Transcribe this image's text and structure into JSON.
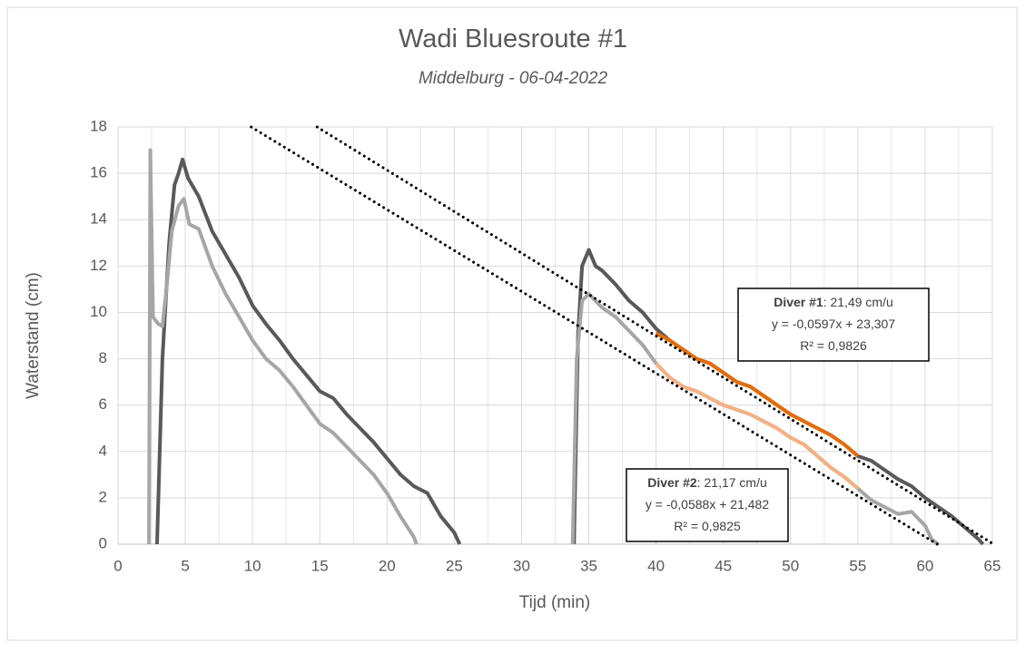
{
  "chart_data": {
    "type": "line",
    "title": "Wadi Bluesroute #1",
    "subtitle": "Middelburg - 06-04-2022",
    "x_label": "Tijd (min)",
    "y_label": "Waterstand (cm)",
    "xlim": [
      0,
      65
    ],
    "ylim": [
      0,
      18
    ],
    "xticks": [
      0,
      5,
      10,
      15,
      20,
      25,
      30,
      35,
      40,
      45,
      50,
      55,
      60,
      65
    ],
    "yticks": [
      0,
      2,
      4,
      6,
      8,
      10,
      12,
      14,
      16,
      18
    ],
    "grid": true,
    "series": [
      {
        "color": "#595959",
        "width": 4,
        "dash": false,
        "x": [
          2.9,
          3.3,
          3.8,
          4.2,
          4.5,
          4.8,
          5.2,
          6,
          7,
          8,
          9,
          10,
          11,
          12,
          13,
          14,
          15,
          16,
          17,
          18,
          19,
          20,
          21,
          22,
          23,
          24,
          25,
          25.4,
          null,
          33.9,
          34.2,
          34.5,
          35,
          35.5,
          36,
          37,
          38,
          39,
          40,
          41,
          42,
          43,
          44,
          45,
          46,
          47,
          48,
          49,
          50,
          51,
          52,
          53,
          54,
          55,
          56,
          57,
          58,
          59,
          60,
          61,
          62,
          63,
          64,
          64.3
        ],
        "values": [
          0,
          8,
          13,
          15.5,
          16,
          16.6,
          15.8,
          15,
          13.5,
          12.5,
          11.5,
          10.3,
          9.5,
          8.8,
          8,
          7.3,
          6.6,
          6.3,
          5.6,
          5,
          4.4,
          3.7,
          3,
          2.5,
          2.2,
          1.2,
          0.5,
          0,
          null,
          0,
          9,
          12,
          12.7,
          12,
          11.8,
          11.2,
          10.5,
          10,
          9.3,
          8.8,
          8.4,
          8,
          7.8,
          7.4,
          7,
          6.8,
          6.4,
          6,
          5.6,
          5.3,
          5,
          4.7,
          4.3,
          3.8,
          3.6,
          3.2,
          2.8,
          2.5,
          2,
          1.6,
          1.2,
          0.7,
          0.2,
          0
        ]
      },
      {
        "color": "#a6a6a6",
        "width": 4,
        "dash": false,
        "x": [
          2.3,
          2.4,
          2.6,
          3,
          3.3,
          3.6,
          4,
          4.5,
          4.9,
          5.3,
          6,
          7,
          8,
          9,
          10,
          11,
          12,
          13,
          14,
          15,
          16,
          17,
          18,
          19,
          20,
          21,
          22,
          22.2,
          null,
          33.8,
          34.1,
          34.5,
          35,
          36,
          37,
          38,
          39,
          40,
          41,
          42,
          43,
          44,
          45,
          46,
          47,
          48,
          49,
          50,
          51,
          52,
          53,
          54,
          55,
          56,
          57,
          58,
          59,
          60,
          60.5,
          61
        ],
        "values": [
          0,
          17,
          9.8,
          9.5,
          9.4,
          11,
          13.5,
          14.6,
          14.9,
          13.8,
          13.6,
          12,
          10.8,
          9.8,
          8.8,
          8,
          7.5,
          6.8,
          6,
          5.2,
          4.8,
          4.2,
          3.6,
          3,
          2.2,
          1.2,
          0.3,
          0,
          null,
          0,
          8,
          10.5,
          10.8,
          10.2,
          9.8,
          9.2,
          8.6,
          7.8,
          7.2,
          6.8,
          6.6,
          6.3,
          6,
          5.8,
          5.6,
          5.3,
          5,
          4.6,
          4.3,
          3.8,
          3.3,
          2.9,
          2.4,
          1.9,
          1.6,
          1.3,
          1.4,
          0.8,
          0.2,
          0
        ]
      },
      {
        "color": "#e46c0a",
        "width": 4,
        "dash": false,
        "x": [
          40,
          41,
          42,
          43,
          44,
          45,
          46,
          47,
          48,
          49,
          50,
          51,
          52,
          53,
          54,
          55
        ],
        "values": [
          9.1,
          8.8,
          8.4,
          8,
          7.8,
          7.4,
          7,
          6.8,
          6.4,
          6,
          5.6,
          5.3,
          5,
          4.7,
          4.3,
          3.8
        ]
      },
      {
        "color": "#f4b183",
        "width": 4,
        "dash": false,
        "x": [
          40,
          41,
          42,
          43,
          44,
          45,
          46,
          47,
          48,
          49,
          50,
          51,
          52,
          53,
          54,
          55
        ],
        "values": [
          7.8,
          7.2,
          6.8,
          6.6,
          6.3,
          6,
          5.8,
          5.6,
          5.3,
          5,
          4.6,
          4.3,
          3.8,
          3.3,
          2.9,
          2.4
        ]
      },
      {
        "color": "#000000",
        "width": 3,
        "dash": true,
        "x": [
          14.8,
          65.1
        ],
        "values": [
          18,
          0
        ]
      },
      {
        "color": "#000000",
        "width": 3,
        "dash": true,
        "x": [
          9.9,
          60.9
        ],
        "values": [
          18,
          0
        ]
      }
    ],
    "annotations": [
      {
        "bold": "Diver #1",
        "text": ": 21,49 cm/u",
        "line2": "y = -0,0597x + 23,307",
        "line3": "R² = 0,9826"
      },
      {
        "bold": "Diver #2",
        "text": ": 21,17 cm/u",
        "line2": "y = -0,0588x + 21,482",
        "line3": "R² = 0,9825"
      }
    ]
  }
}
